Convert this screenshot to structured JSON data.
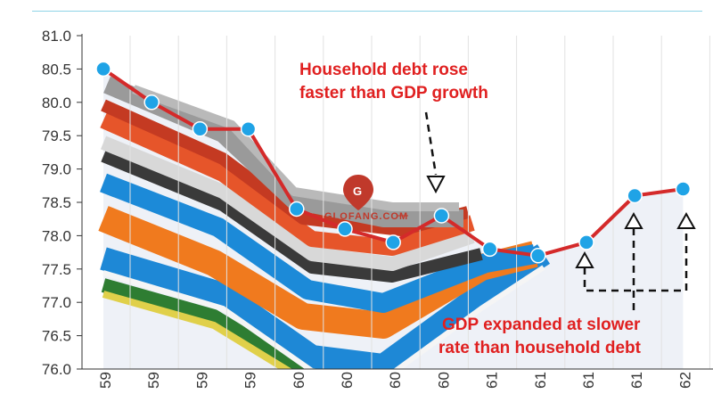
{
  "chart_data": {
    "type": "line",
    "title": "",
    "xlabel": "",
    "ylabel": "",
    "ylim": [
      76.0,
      81.0
    ],
    "yticks": [
      "76.0",
      "76.5",
      "77.0",
      "77.5",
      "78.0",
      "78.5",
      "79.0",
      "79.5",
      "80.0",
      "80.5",
      "81.0"
    ],
    "categories": [
      "59",
      "59",
      "59",
      "59",
      "60",
      "60",
      "60",
      "60",
      "61",
      "61",
      "61",
      "61",
      "62"
    ],
    "values": [
      80.5,
      80.0,
      79.6,
      79.6,
      78.4,
      78.1,
      77.9,
      78.3,
      77.8,
      77.7,
      77.9,
      78.6,
      78.7
    ],
    "grid": "vertical",
    "line_color": "#d42a2a",
    "marker_color": "#1fa3e6",
    "annotations": [
      {
        "lines": [
          "Household debt rose",
          "faster than GDP growth"
        ],
        "color": "#e02020"
      },
      {
        "lines": [
          "GDP expanded at slower",
          "rate than household debt"
        ],
        "color": "#e02020"
      }
    ]
  },
  "watermark": {
    "text": "GLOFANG.COM"
  }
}
